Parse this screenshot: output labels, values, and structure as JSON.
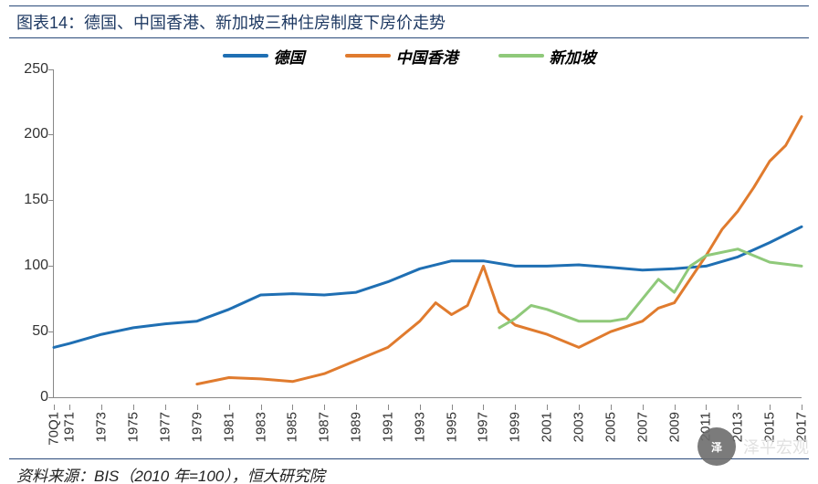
{
  "title": "图表14：德国、中国香港、新加坡三种住房制度下房价走势",
  "source": "资料来源：BIS（2010 年=100），恒大研究院",
  "watermark": {
    "logo": "泽",
    "text": "泽平宏观"
  },
  "chart": {
    "type": "line",
    "background_color": "#ffffff",
    "axis_color": "#888888",
    "font_size_axis": 15,
    "ylim": [
      0,
      250
    ],
    "ytick_step": 50,
    "xlim": [
      1970,
      2017
    ],
    "x_labels": [
      "70Q1",
      "1971",
      "1973",
      "1975",
      "1977",
      "1979",
      "1981",
      "1983",
      "1985",
      "1987",
      "1989",
      "1991",
      "1993",
      "1995",
      "1997",
      "1999",
      "2001",
      "2003",
      "2005",
      "2007",
      "2009",
      "2011",
      "2013",
      "2015",
      "2017"
    ],
    "x_values": [
      1970,
      1971,
      1973,
      1975,
      1977,
      1979,
      1981,
      1983,
      1985,
      1987,
      1989,
      1991,
      1993,
      1995,
      1997,
      1999,
      2001,
      2003,
      2005,
      2007,
      2009,
      2011,
      2013,
      2015,
      2017
    ],
    "legend": {
      "items": [
        {
          "label": "德国",
          "color": "#1f6fb3"
        },
        {
          "label": "中国香港",
          "color": "#e07b2e"
        },
        {
          "label": "新加坡",
          "color": "#8fc97a"
        }
      ],
      "font_size": 17,
      "font_weight": "bold",
      "font_style": "italic"
    },
    "series": [
      {
        "name": "germany",
        "label": "德国",
        "color": "#1f6fb3",
        "line_width": 3,
        "x": [
          1970,
          1971,
          1973,
          1975,
          1977,
          1979,
          1981,
          1983,
          1985,
          1987,
          1989,
          1991,
          1993,
          1995,
          1997,
          1999,
          2001,
          2003,
          2005,
          2007,
          2009,
          2011,
          2013,
          2015,
          2017
        ],
        "y": [
          38,
          41,
          48,
          53,
          56,
          58,
          67,
          78,
          79,
          78,
          80,
          88,
          98,
          104,
          104,
          100,
          100,
          101,
          99,
          97,
          98,
          100,
          107,
          118,
          130
        ]
      },
      {
        "name": "hongkong",
        "label": "中国香港",
        "color": "#e07b2e",
        "line_width": 3,
        "x": [
          1979,
          1981,
          1983,
          1985,
          1987,
          1989,
          1991,
          1993,
          1994,
          1995,
          1996,
          1997,
          1998,
          1999,
          2001,
          2003,
          2005,
          2007,
          2008,
          2009,
          2011,
          2012,
          2013,
          2014,
          2015,
          2016,
          2017
        ],
        "y": [
          10,
          15,
          14,
          12,
          18,
          28,
          38,
          58,
          72,
          63,
          70,
          100,
          65,
          55,
          48,
          38,
          50,
          58,
          68,
          72,
          108,
          128,
          142,
          160,
          180,
          192,
          214
        ]
      },
      {
        "name": "singapore",
        "label": "新加坡",
        "color": "#8fc97a",
        "line_width": 3,
        "x": [
          1998,
          1999,
          2000,
          2001,
          2003,
          2005,
          2006,
          2007,
          2008,
          2009,
          2010,
          2011,
          2013,
          2015,
          2017
        ],
        "y": [
          53,
          60,
          70,
          67,
          58,
          58,
          60,
          75,
          90,
          80,
          100,
          108,
          113,
          103,
          100
        ]
      }
    ]
  }
}
